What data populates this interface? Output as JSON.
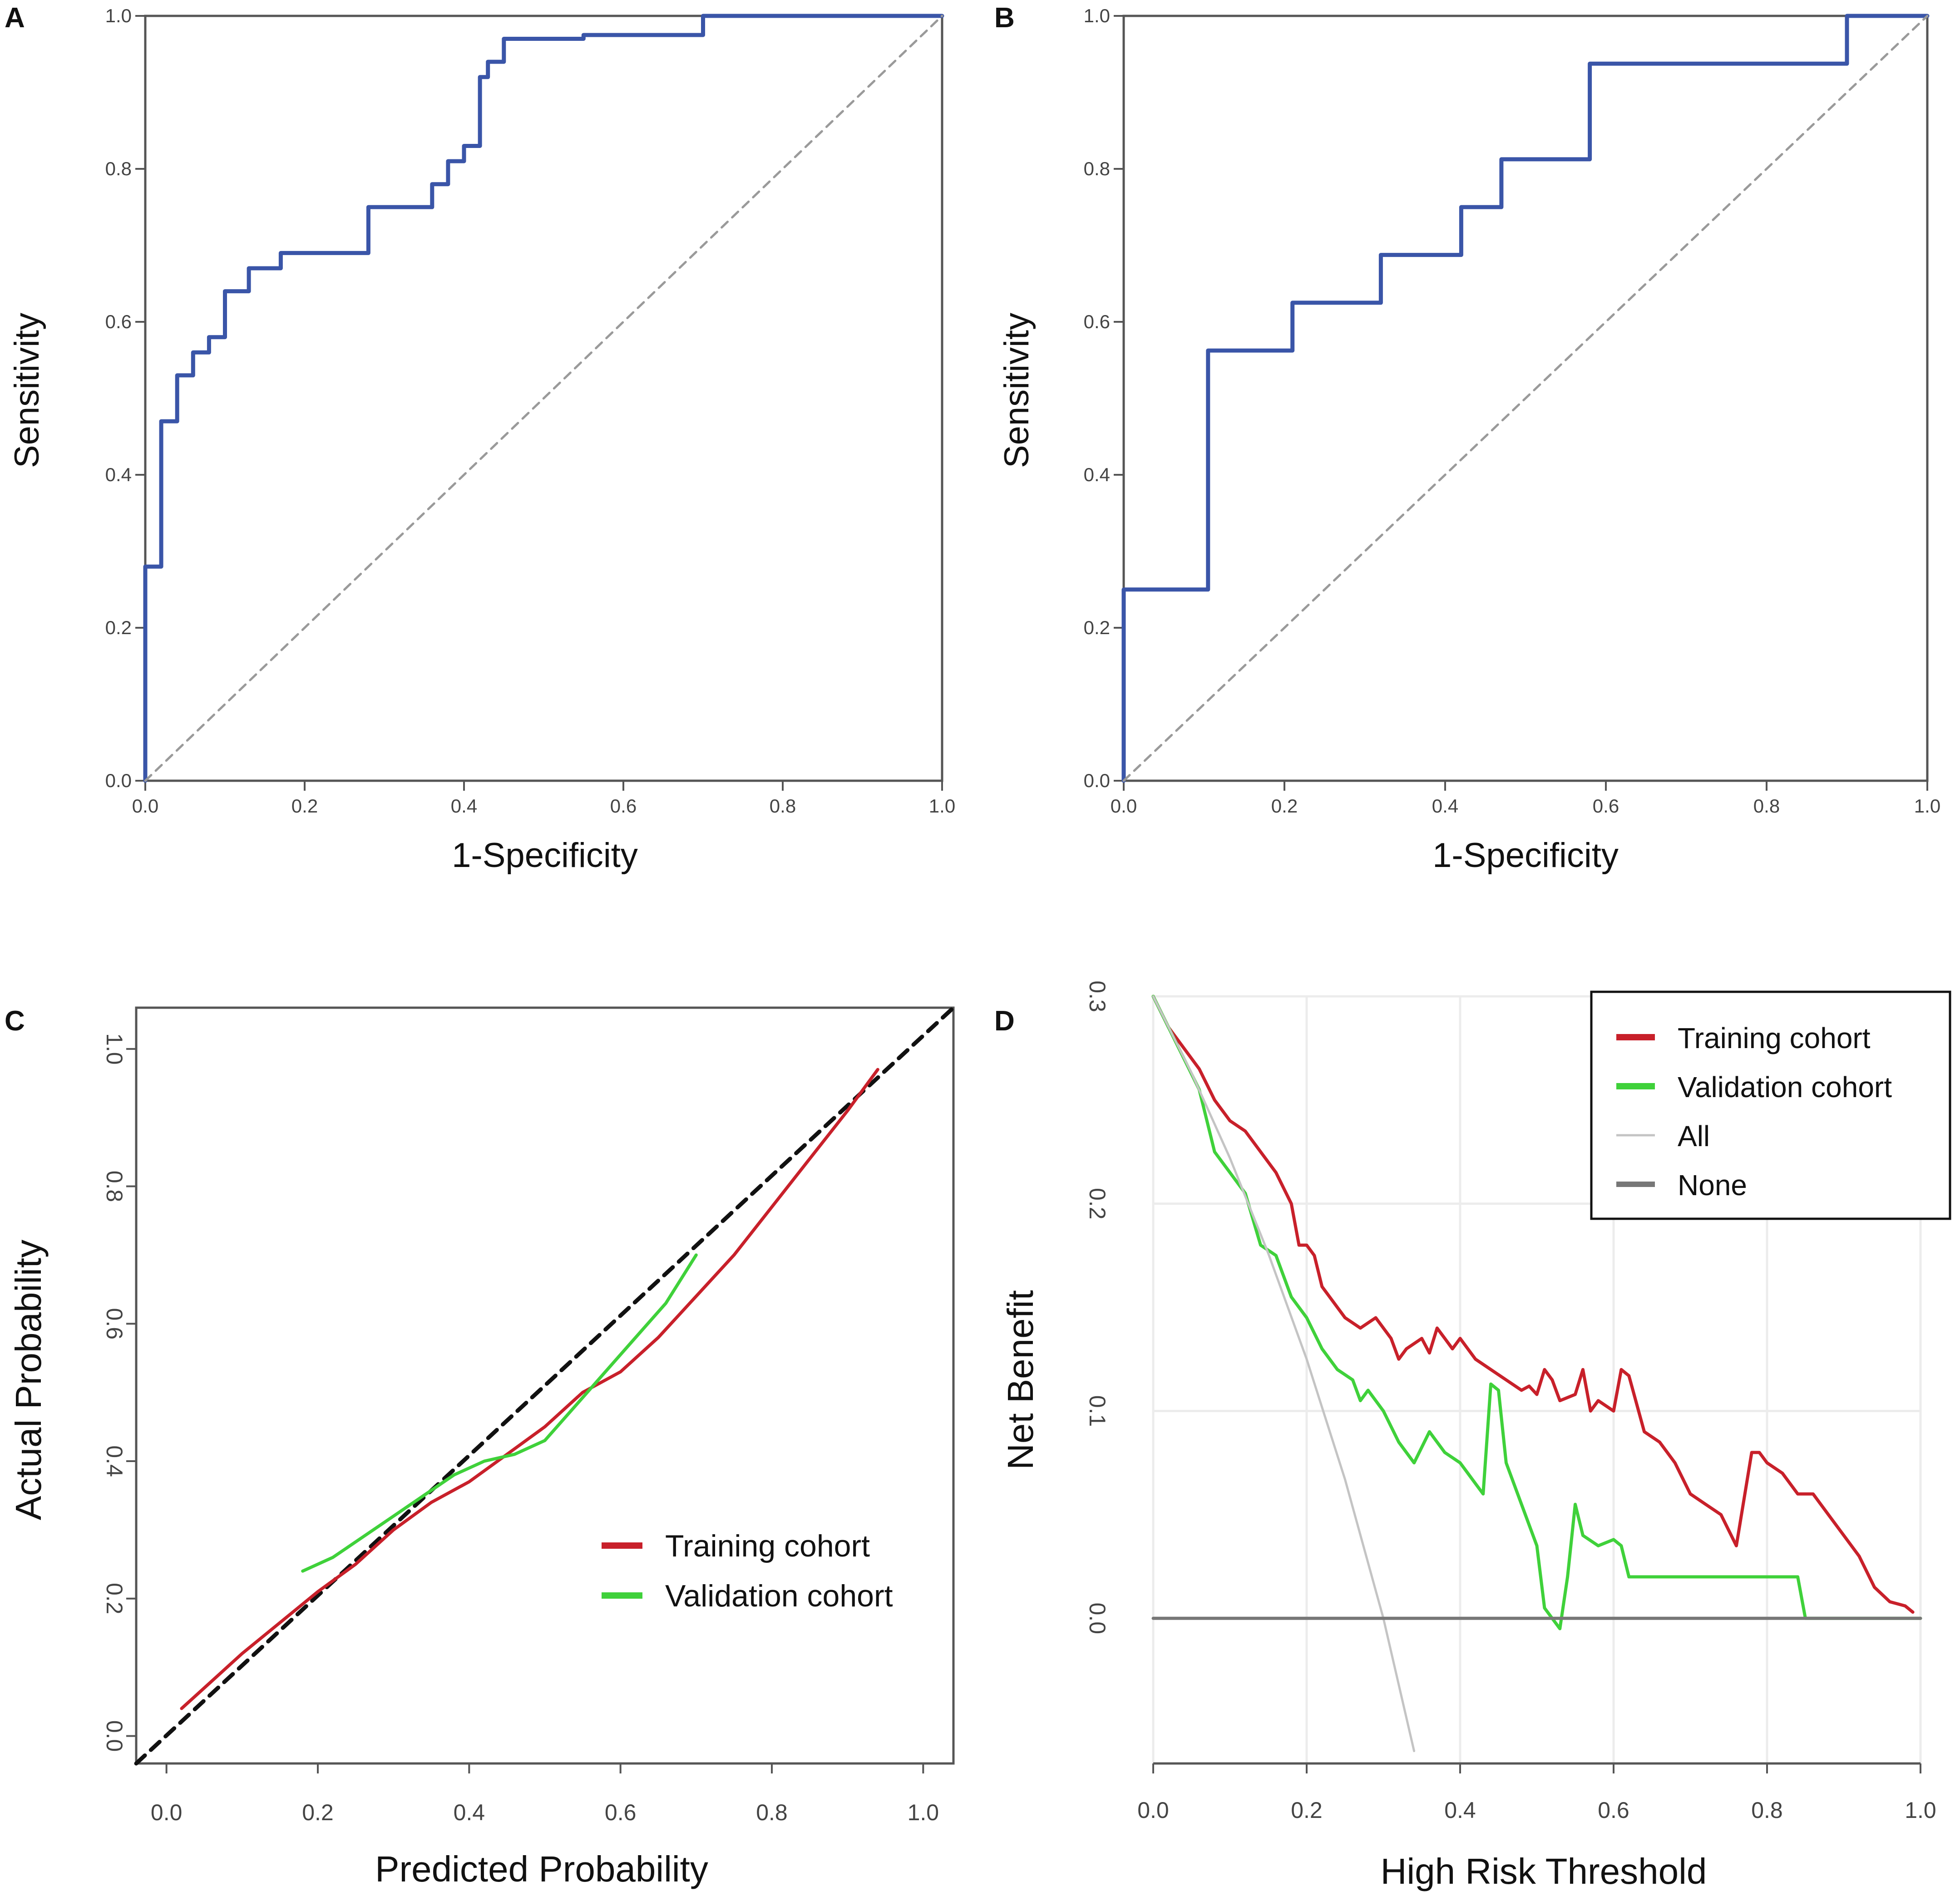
{
  "colors": {
    "roc_curve": "#3a55a8",
    "training": "#c8202a",
    "validation": "#3fd13a",
    "diagonal_gray": "#9a9a9a",
    "all_line": "#c4c4c4",
    "none_line": "#777777",
    "axis": "#555555",
    "text": "#111111",
    "grid": "#ececec"
  },
  "chart_data": [
    {
      "panel": "A",
      "type": "line",
      "title": "",
      "xlabel": "1-Specificity",
      "ylabel": "Sensitivity",
      "xlim": [
        0,
        1
      ],
      "ylim": [
        0,
        1
      ],
      "xticks": [
        "0.0",
        "0.2",
        "0.4",
        "0.6",
        "0.8",
        "1.0"
      ],
      "yticks": [
        "0.0",
        "0.2",
        "0.4",
        "0.6",
        "0.8",
        "1.0"
      ],
      "grid": false,
      "series": [
        {
          "name": "ROC",
          "style": "roc",
          "x": [
            0,
            0,
            0.02,
            0.02,
            0.04,
            0.04,
            0.06,
            0.06,
            0.08,
            0.08,
            0.1,
            0.1,
            0.13,
            0.13,
            0.17,
            0.17,
            0.28,
            0.28,
            0.36,
            0.36,
            0.38,
            0.38,
            0.4,
            0.4,
            0.42,
            0.42,
            0.43,
            0.43,
            0.45,
            0.45,
            0.55,
            0.55,
            0.7,
            0.7,
            1.0
          ],
          "y": [
            0,
            0.28,
            0.28,
            0.47,
            0.47,
            0.53,
            0.53,
            0.56,
            0.56,
            0.58,
            0.58,
            0.64,
            0.64,
            0.67,
            0.67,
            0.69,
            0.69,
            0.75,
            0.75,
            0.78,
            0.78,
            0.81,
            0.81,
            0.83,
            0.83,
            0.92,
            0.92,
            0.94,
            0.94,
            0.97,
            0.97,
            0.975,
            0.975,
            1.0,
            1.0
          ]
        },
        {
          "name": "Reference",
          "style": "diagonal",
          "x": [
            0,
            1
          ],
          "y": [
            0,
            1
          ]
        }
      ]
    },
    {
      "panel": "B",
      "type": "line",
      "title": "",
      "xlabel": "1-Specificity",
      "ylabel": "Sensitivity",
      "xlim": [
        0,
        1
      ],
      "ylim": [
        0,
        1
      ],
      "xticks": [
        "0.0",
        "0.2",
        "0.4",
        "0.6",
        "0.8",
        "1.0"
      ],
      "yticks": [
        "0.0",
        "0.2",
        "0.4",
        "0.6",
        "0.8",
        "1.0"
      ],
      "grid": false,
      "series": [
        {
          "name": "ROC",
          "style": "roc",
          "x": [
            0,
            0,
            0.105,
            0.105,
            0.21,
            0.21,
            0.32,
            0.32,
            0.42,
            0.42,
            0.47,
            0.47,
            0.58,
            0.58,
            0.9,
            0.9,
            1.0
          ],
          "y": [
            0,
            0.25,
            0.25,
            0.5625,
            0.5625,
            0.625,
            0.625,
            0.6875,
            0.6875,
            0.75,
            0.75,
            0.8125,
            0.8125,
            0.9375,
            0.9375,
            1.0,
            1.0
          ]
        },
        {
          "name": "Reference",
          "style": "diagonal",
          "x": [
            0,
            1
          ],
          "y": [
            0,
            1
          ]
        }
      ]
    },
    {
      "panel": "C",
      "type": "line",
      "title": "",
      "xlabel": "Predicted Probability",
      "ylabel": "Actual Probability",
      "xlim": [
        -0.04,
        1.04
      ],
      "ylim": [
        -0.04,
        1.06
      ],
      "xticks": [
        "0.0",
        "0.2",
        "0.4",
        "0.6",
        "0.8",
        "1.0"
      ],
      "yticks": [
        "0.0",
        "0.2",
        "0.4",
        "0.6",
        "0.8",
        "1.0"
      ],
      "grid": false,
      "legend_position": "bottom-right",
      "series": [
        {
          "name": "Ideal",
          "style": "ideal",
          "x": [
            -0.04,
            1.04
          ],
          "y": [
            -0.04,
            1.06
          ]
        },
        {
          "name": "Training cohort",
          "style": "training",
          "x": [
            0.02,
            0.06,
            0.1,
            0.15,
            0.2,
            0.25,
            0.3,
            0.35,
            0.4,
            0.45,
            0.5,
            0.55,
            0.6,
            0.65,
            0.7,
            0.75,
            0.8,
            0.85,
            0.9,
            0.94
          ],
          "y": [
            0.04,
            0.08,
            0.12,
            0.165,
            0.21,
            0.25,
            0.3,
            0.34,
            0.37,
            0.41,
            0.45,
            0.5,
            0.53,
            0.58,
            0.64,
            0.7,
            0.77,
            0.84,
            0.91,
            0.97
          ]
        },
        {
          "name": "Validation cohort",
          "style": "validation",
          "x": [
            0.18,
            0.22,
            0.26,
            0.3,
            0.34,
            0.38,
            0.42,
            0.46,
            0.5,
            0.54,
            0.58,
            0.62,
            0.66,
            0.7
          ],
          "y": [
            0.24,
            0.26,
            0.29,
            0.32,
            0.35,
            0.38,
            0.4,
            0.41,
            0.43,
            0.48,
            0.53,
            0.58,
            0.63,
            0.7
          ]
        }
      ],
      "legend": [
        "Training cohort",
        "Validation cohort"
      ]
    },
    {
      "panel": "D",
      "type": "line",
      "title": "",
      "xlabel": "High Risk Threshold",
      "ylabel": "Net Benefit",
      "xlim": [
        0,
        1
      ],
      "ylim": [
        -0.07,
        0.3
      ],
      "xticks": [
        "0.0",
        "0.2",
        "0.4",
        "0.6",
        "0.8",
        "1.0"
      ],
      "yticks": [
        "0.0",
        "0.1",
        "0.2",
        "0.3"
      ],
      "grid": true,
      "legend_position": "top-right",
      "series": [
        {
          "name": "Training cohort",
          "style": "training",
          "x": [
            0,
            0.02,
            0.04,
            0.06,
            0.08,
            0.1,
            0.12,
            0.14,
            0.16,
            0.18,
            0.19,
            0.2,
            0.21,
            0.22,
            0.23,
            0.25,
            0.27,
            0.29,
            0.3,
            0.31,
            0.32,
            0.33,
            0.35,
            0.36,
            0.37,
            0.38,
            0.39,
            0.4,
            0.42,
            0.44,
            0.46,
            0.48,
            0.49,
            0.5,
            0.51,
            0.52,
            0.53,
            0.55,
            0.56,
            0.57,
            0.58,
            0.6,
            0.61,
            0.62,
            0.64,
            0.66,
            0.68,
            0.7,
            0.72,
            0.74,
            0.76,
            0.78,
            0.79,
            0.8,
            0.82,
            0.84,
            0.86,
            0.88,
            0.9,
            0.92,
            0.94,
            0.96,
            0.98,
            0.99
          ],
          "y": [
            0.3,
            0.285,
            0.275,
            0.265,
            0.25,
            0.24,
            0.235,
            0.225,
            0.215,
            0.2,
            0.18,
            0.18,
            0.175,
            0.16,
            0.155,
            0.145,
            0.14,
            0.145,
            0.14,
            0.135,
            0.125,
            0.13,
            0.135,
            0.128,
            0.14,
            0.135,
            0.13,
            0.135,
            0.125,
            0.12,
            0.115,
            0.11,
            0.112,
            0.108,
            0.12,
            0.115,
            0.105,
            0.108,
            0.12,
            0.1,
            0.105,
            0.1,
            0.12,
            0.117,
            0.09,
            0.085,
            0.075,
            0.06,
            0.055,
            0.05,
            0.035,
            0.08,
            0.08,
            0.075,
            0.07,
            0.06,
            0.06,
            0.05,
            0.04,
            0.03,
            0.015,
            0.008,
            0.006,
            0.003
          ]
        },
        {
          "name": "Validation cohort",
          "style": "validation",
          "x": [
            0,
            0.02,
            0.04,
            0.06,
            0.07,
            0.08,
            0.1,
            0.12,
            0.14,
            0.16,
            0.18,
            0.2,
            0.22,
            0.24,
            0.26,
            0.27,
            0.28,
            0.3,
            0.32,
            0.34,
            0.36,
            0.38,
            0.4,
            0.41,
            0.42,
            0.43,
            0.44,
            0.45,
            0.46,
            0.48,
            0.5,
            0.51,
            0.52,
            0.53,
            0.54,
            0.55,
            0.56,
            0.58,
            0.6,
            0.61,
            0.62,
            0.7,
            0.8,
            0.84,
            0.85,
            0.9,
            1.0
          ],
          "y": [
            0.3,
            0.285,
            0.27,
            0.255,
            0.24,
            0.225,
            0.215,
            0.205,
            0.18,
            0.175,
            0.155,
            0.145,
            0.13,
            0.12,
            0.115,
            0.105,
            0.11,
            0.1,
            0.085,
            0.075,
            0.09,
            0.08,
            0.075,
            0.07,
            0.065,
            0.06,
            0.113,
            0.11,
            0.075,
            0.055,
            0.035,
            0.005,
            0.0,
            -0.005,
            0.02,
            0.055,
            0.04,
            0.035,
            0.038,
            0.035,
            0.02,
            0.02,
            0.02,
            0.02,
            0.0,
            0.0,
            0.0
          ]
        },
        {
          "name": "All",
          "style": "all",
          "x": [
            0,
            0.05,
            0.1,
            0.15,
            0.2,
            0.25,
            0.3,
            0.34
          ],
          "y": [
            0.3,
            0.263,
            0.222,
            0.176,
            0.125,
            0.067,
            0.0,
            -0.064
          ]
        },
        {
          "name": "None",
          "style": "none",
          "x": [
            0,
            1
          ],
          "y": [
            0,
            0
          ]
        }
      ],
      "legend": [
        "Training cohort",
        "Validation cohort",
        "All",
        "None"
      ]
    }
  ]
}
